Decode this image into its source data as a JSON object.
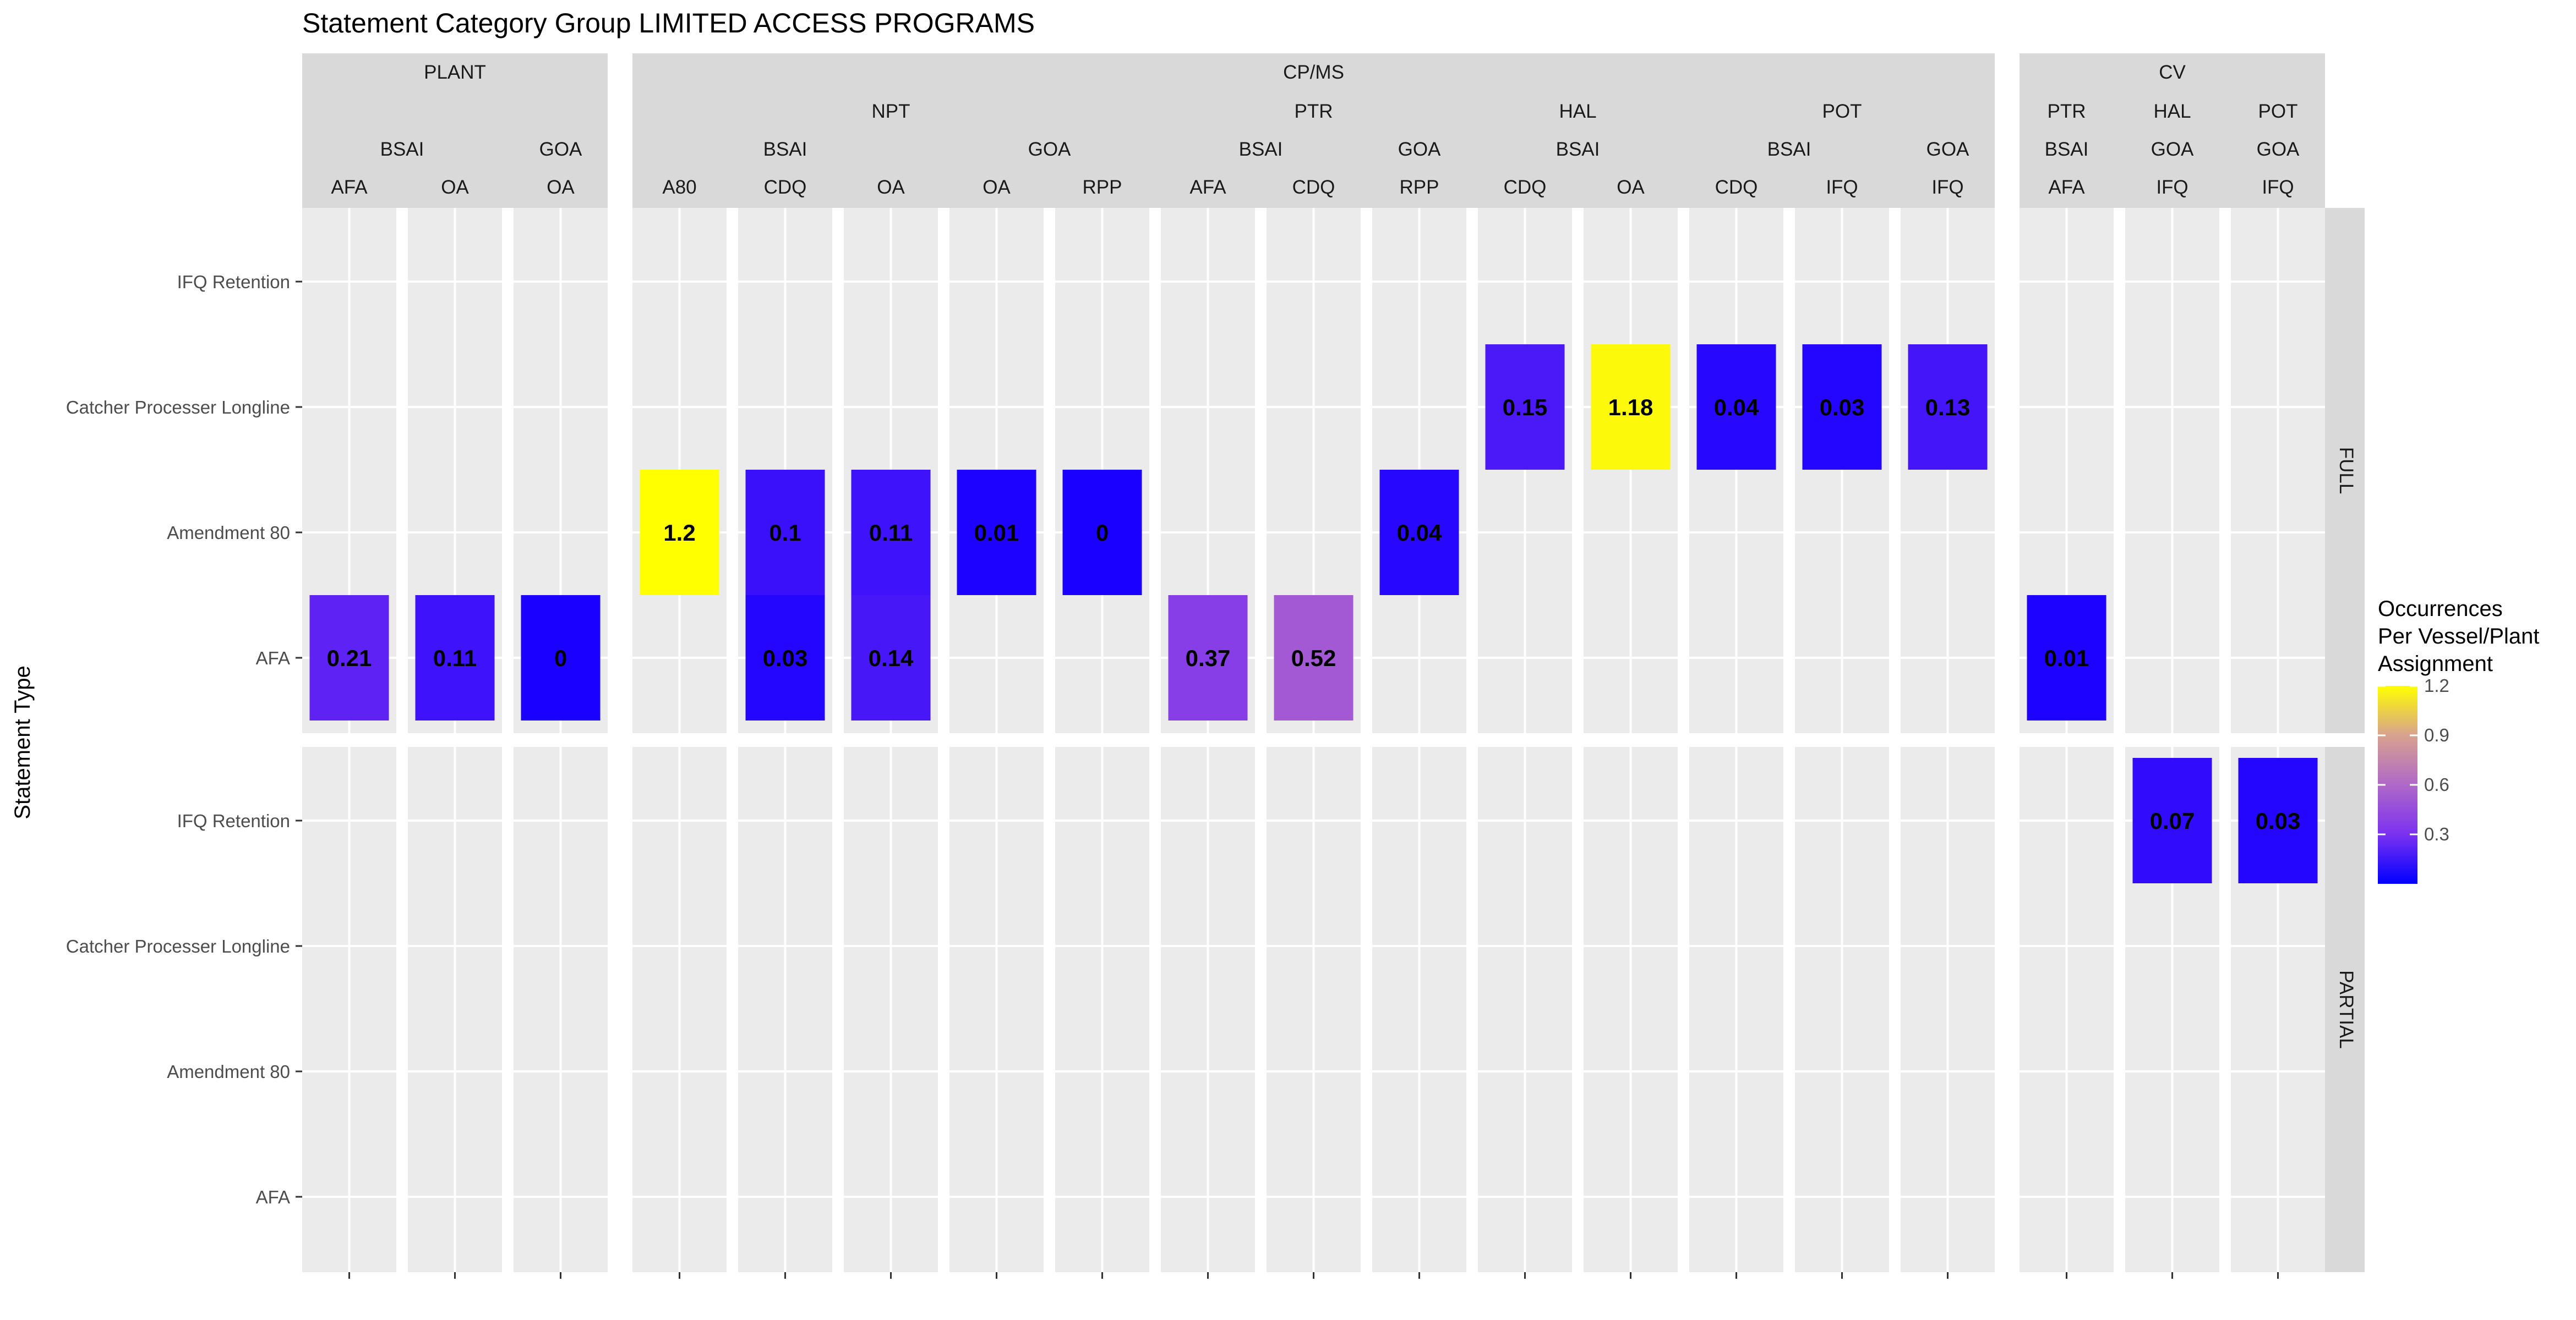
{
  "chart_data": {
    "type": "heatmap",
    "title": "Statement Category Group LIMITED ACCESS PROGRAMS",
    "ylabel": "Statement Type",
    "legend": {
      "title_lines": [
        "Occurrences",
        "Per Vessel/Plant",
        "Assignment"
      ],
      "ticks": [
        "1.2",
        "0.9",
        "0.6",
        "0.3"
      ],
      "tick_values": [
        1.2,
        0.9,
        0.6,
        0.3
      ],
      "range": [
        0,
        1.2
      ],
      "low_color": "#0000ff",
      "high_color": "#ffff00",
      "placement": "right"
    },
    "row_facets": [
      "FULL",
      "PARTIAL"
    ],
    "y_categories": [
      "IFQ Retention",
      "Catcher Processer Longline",
      "Amendment 80",
      "AFA"
    ],
    "group_strips": [
      "PLANT",
      "CP/MS",
      "CV"
    ],
    "gear_strips": [
      {
        "label": "PLANT",
        "span": [
          0,
          2
        ]
      },
      {
        "label": "NPT",
        "span": [
          3,
          7
        ]
      },
      {
        "label": "PTR",
        "span": [
          8,
          10
        ]
      },
      {
        "label": "HAL",
        "span": [
          11,
          12
        ]
      },
      {
        "label": "POT",
        "span": [
          13,
          15
        ]
      },
      {
        "label": "PTR",
        "span": [
          16,
          16
        ]
      },
      {
        "label": "HAL",
        "span": [
          17,
          17
        ]
      },
      {
        "label": "POT",
        "span": [
          18,
          18
        ]
      }
    ],
    "area_strips": [
      {
        "label": "BSAI",
        "span": [
          0,
          1
        ]
      },
      {
        "label": "GOA",
        "span": [
          2,
          2
        ]
      },
      {
        "label": "BSAI",
        "span": [
          3,
          5
        ]
      },
      {
        "label": "GOA",
        "span": [
          6,
          7
        ]
      },
      {
        "label": "BSAI",
        "span": [
          8,
          9
        ]
      },
      {
        "label": "GOA",
        "span": [
          10,
          10
        ]
      },
      {
        "label": "BSAI",
        "span": [
          11,
          12
        ]
      },
      {
        "label": "BSAI",
        "span": [
          13,
          14
        ]
      },
      {
        "label": "GOA",
        "span": [
          15,
          15
        ]
      },
      {
        "label": "BSAI",
        "span": [
          16,
          16
        ]
      },
      {
        "label": "GOA",
        "span": [
          17,
          17
        ]
      },
      {
        "label": "GOA",
        "span": [
          18,
          18
        ]
      }
    ],
    "panels": [
      "AFA",
      "OA",
      "OA",
      "A80",
      "CDQ",
      "OA",
      "OA",
      "RPP",
      "AFA",
      "CDQ",
      "RPP",
      "CDQ",
      "OA",
      "CDQ",
      "IFQ",
      "IFQ",
      "AFA",
      "IFQ",
      "IFQ"
    ],
    "cells": [
      {
        "panel": 0,
        "facet": "FULL",
        "row": "AFA",
        "value": 0.21,
        "label": "0.21"
      },
      {
        "panel": 1,
        "facet": "FULL",
        "row": "AFA",
        "value": 0.11,
        "label": "0.11"
      },
      {
        "panel": 2,
        "facet": "FULL",
        "row": "AFA",
        "value": 0,
        "label": "0"
      },
      {
        "panel": 3,
        "facet": "FULL",
        "row": "Amendment 80",
        "value": 1.2,
        "label": "1.2"
      },
      {
        "panel": 4,
        "facet": "FULL",
        "row": "Amendment 80",
        "value": 0.1,
        "label": "0.1"
      },
      {
        "panel": 4,
        "facet": "FULL",
        "row": "AFA",
        "value": 0.03,
        "label": "0.03"
      },
      {
        "panel": 5,
        "facet": "FULL",
        "row": "Amendment 80",
        "value": 0.11,
        "label": "0.11"
      },
      {
        "panel": 5,
        "facet": "FULL",
        "row": "AFA",
        "value": 0.14,
        "label": "0.14"
      },
      {
        "panel": 6,
        "facet": "FULL",
        "row": "Amendment 80",
        "value": 0.01,
        "label": "0.01"
      },
      {
        "panel": 7,
        "facet": "FULL",
        "row": "Amendment 80",
        "value": 0,
        "label": "0"
      },
      {
        "panel": 8,
        "facet": "FULL",
        "row": "AFA",
        "value": 0.37,
        "label": "0.37"
      },
      {
        "panel": 9,
        "facet": "FULL",
        "row": "AFA",
        "value": 0.52,
        "label": "0.52"
      },
      {
        "panel": 10,
        "facet": "FULL",
        "row": "Amendment 80",
        "value": 0.04,
        "label": "0.04"
      },
      {
        "panel": 11,
        "facet": "FULL",
        "row": "Catcher Processer Longline",
        "value": 0.15,
        "label": "0.15"
      },
      {
        "panel": 12,
        "facet": "FULL",
        "row": "Catcher Processer Longline",
        "value": 1.18,
        "label": "1.18"
      },
      {
        "panel": 13,
        "facet": "FULL",
        "row": "Catcher Processer Longline",
        "value": 0.04,
        "label": "0.04"
      },
      {
        "panel": 14,
        "facet": "FULL",
        "row": "Catcher Processer Longline",
        "value": 0.03,
        "label": "0.03"
      },
      {
        "panel": 15,
        "facet": "FULL",
        "row": "Catcher Processer Longline",
        "value": 0.13,
        "label": "0.13"
      },
      {
        "panel": 16,
        "facet": "FULL",
        "row": "AFA",
        "value": 0.01,
        "label": "0.01"
      },
      {
        "panel": 17,
        "facet": "PARTIAL",
        "row": "IFQ Retention",
        "value": 0.07,
        "label": "0.07"
      },
      {
        "panel": 18,
        "facet": "PARTIAL",
        "row": "IFQ Retention",
        "value": 0.03,
        "label": "0.03"
      }
    ],
    "grid": true
  }
}
